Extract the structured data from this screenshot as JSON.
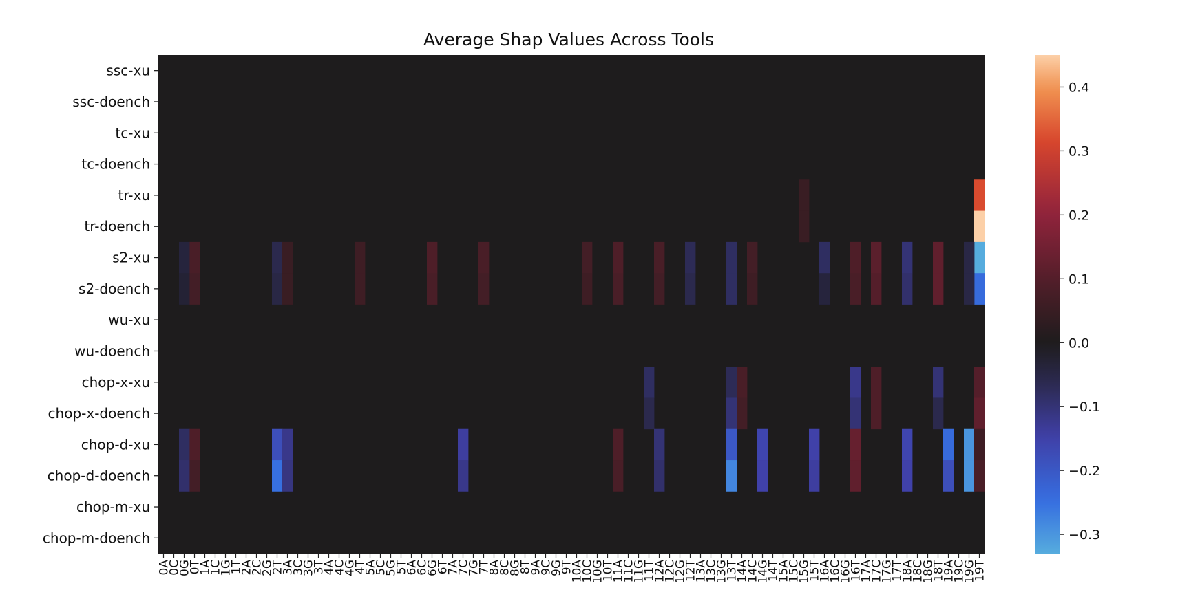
{
  "chart_data": {
    "type": "heatmap",
    "title": "Average Shap Values Across Tools",
    "rows": [
      "ssc-xu",
      "ssc-doench",
      "tc-xu",
      "tc-doench",
      "tr-xu",
      "tr-doench",
      "s2-xu",
      "s2-doench",
      "wu-xu",
      "wu-doench",
      "chop-x-xu",
      "chop-x-doench",
      "chop-d-xu",
      "chop-d-doench",
      "chop-m-xu",
      "chop-m-doench"
    ],
    "columns": [
      "0A",
      "0C",
      "0G",
      "0T",
      "1A",
      "1C",
      "1G",
      "1T",
      "2A",
      "2C",
      "2G",
      "2T",
      "3A",
      "3C",
      "3G",
      "3T",
      "4A",
      "4C",
      "4G",
      "4T",
      "5A",
      "5C",
      "5G",
      "5T",
      "6A",
      "6C",
      "6G",
      "6T",
      "7A",
      "7C",
      "7G",
      "7T",
      "8A",
      "8C",
      "8G",
      "8T",
      "9A",
      "9C",
      "9G",
      "9T",
      "10A",
      "10C",
      "10G",
      "10T",
      "11A",
      "11C",
      "11G",
      "11T",
      "12A",
      "12C",
      "12G",
      "12T",
      "13A",
      "13C",
      "13G",
      "13T",
      "14A",
      "14C",
      "14G",
      "14T",
      "15A",
      "15C",
      "15G",
      "15T",
      "16A",
      "16C",
      "16G",
      "16T",
      "17A",
      "17C",
      "17G",
      "17T",
      "18A",
      "18C",
      "18G",
      "18T",
      "19A",
      "19C",
      "19G",
      "19T"
    ],
    "cells": [
      {
        "row": "tr-xu",
        "col": "19T",
        "value": 0.32
      },
      {
        "row": "tr-doench",
        "col": "19T",
        "value": 0.45
      },
      {
        "row": "tr-xu",
        "col": "15G",
        "value": 0.05
      },
      {
        "row": "tr-doench",
        "col": "15G",
        "value": 0.05
      },
      {
        "row": "s2-xu",
        "col": "19T",
        "value": -0.33
      },
      {
        "row": "s2-doench",
        "col": "19T",
        "value": -0.24
      },
      {
        "row": "s2-xu",
        "col": "0T",
        "value": 0.08
      },
      {
        "row": "s2-doench",
        "col": "0T",
        "value": 0.07
      },
      {
        "row": "s2-xu",
        "col": "0G",
        "value": -0.04
      },
      {
        "row": "s2-doench",
        "col": "0G",
        "value": -0.03
      },
      {
        "row": "s2-xu",
        "col": "2T",
        "value": -0.06
      },
      {
        "row": "s2-doench",
        "col": "2T",
        "value": -0.05
      },
      {
        "row": "s2-xu",
        "col": "3A",
        "value": 0.05
      },
      {
        "row": "s2-doench",
        "col": "3A",
        "value": 0.05
      },
      {
        "row": "s2-xu",
        "col": "4T",
        "value": 0.06
      },
      {
        "row": "s2-doench",
        "col": "4T",
        "value": 0.06
      },
      {
        "row": "s2-xu",
        "col": "6G",
        "value": 0.09
      },
      {
        "row": "s2-doench",
        "col": "6G",
        "value": 0.08
      },
      {
        "row": "s2-xu",
        "col": "7T",
        "value": 0.08
      },
      {
        "row": "s2-doench",
        "col": "7T",
        "value": 0.07
      },
      {
        "row": "s2-xu",
        "col": "10C",
        "value": 0.07
      },
      {
        "row": "s2-doench",
        "col": "10C",
        "value": 0.06
      },
      {
        "row": "s2-xu",
        "col": "11A",
        "value": 0.09
      },
      {
        "row": "s2-doench",
        "col": "11A",
        "value": 0.08
      },
      {
        "row": "s2-xu",
        "col": "12A",
        "value": 0.08
      },
      {
        "row": "s2-doench",
        "col": "12A",
        "value": 0.07
      },
      {
        "row": "s2-xu",
        "col": "12T",
        "value": -0.07
      },
      {
        "row": "s2-doench",
        "col": "12T",
        "value": -0.06
      },
      {
        "row": "s2-xu",
        "col": "13T",
        "value": -0.08
      },
      {
        "row": "s2-doench",
        "col": "13T",
        "value": -0.08
      },
      {
        "row": "s2-xu",
        "col": "14C",
        "value": 0.07
      },
      {
        "row": "s2-doench",
        "col": "14C",
        "value": 0.06
      },
      {
        "row": "s2-xu",
        "col": "16A",
        "value": -0.08
      },
      {
        "row": "s2-doench",
        "col": "16A",
        "value": -0.04
      },
      {
        "row": "s2-xu",
        "col": "16T",
        "value": 0.09
      },
      {
        "row": "s2-doench",
        "col": "16T",
        "value": 0.08
      },
      {
        "row": "s2-xu",
        "col": "17C",
        "value": 0.11
      },
      {
        "row": "s2-doench",
        "col": "17C",
        "value": 0.1
      },
      {
        "row": "s2-xu",
        "col": "18A",
        "value": -0.1
      },
      {
        "row": "s2-doench",
        "col": "18A",
        "value": -0.09
      },
      {
        "row": "s2-xu",
        "col": "18T",
        "value": 0.12
      },
      {
        "row": "s2-doench",
        "col": "18T",
        "value": 0.12
      },
      {
        "row": "s2-xu",
        "col": "19G",
        "value": -0.05
      },
      {
        "row": "s2-doench",
        "col": "19G",
        "value": -0.05
      },
      {
        "row": "chop-x-xu",
        "col": "11T",
        "value": -0.08
      },
      {
        "row": "chop-x-doench",
        "col": "11T",
        "value": -0.06
      },
      {
        "row": "chop-x-xu",
        "col": "13T",
        "value": -0.07
      },
      {
        "row": "chop-x-doench",
        "col": "13T",
        "value": -0.1
      },
      {
        "row": "chop-x-xu",
        "col": "14A",
        "value": 0.08
      },
      {
        "row": "chop-x-doench",
        "col": "14A",
        "value": 0.07
      },
      {
        "row": "chop-x-xu",
        "col": "16T",
        "value": -0.12
      },
      {
        "row": "chop-x-doench",
        "col": "16T",
        "value": -0.1
      },
      {
        "row": "chop-x-xu",
        "col": "17C",
        "value": 0.09
      },
      {
        "row": "chop-x-doench",
        "col": "17C",
        "value": 0.09
      },
      {
        "row": "chop-x-xu",
        "col": "18T",
        "value": -0.1
      },
      {
        "row": "chop-x-doench",
        "col": "18T",
        "value": -0.06
      },
      {
        "row": "chop-x-xu",
        "col": "19T",
        "value": 0.1
      },
      {
        "row": "chop-x-doench",
        "col": "19T",
        "value": 0.12
      },
      {
        "row": "chop-d-xu",
        "col": "2T",
        "value": -0.18
      },
      {
        "row": "chop-d-doench",
        "col": "2T",
        "value": -0.25
      },
      {
        "row": "chop-d-xu",
        "col": "0T",
        "value": 0.09
      },
      {
        "row": "chop-d-doench",
        "col": "0T",
        "value": 0.07
      },
      {
        "row": "chop-d-xu",
        "col": "0G",
        "value": -0.08
      },
      {
        "row": "chop-d-doench",
        "col": "0G",
        "value": -0.09
      },
      {
        "row": "chop-d-xu",
        "col": "3A",
        "value": -0.12
      },
      {
        "row": "chop-d-doench",
        "col": "3A",
        "value": -0.11
      },
      {
        "row": "chop-d-xu",
        "col": "7C",
        "value": -0.14
      },
      {
        "row": "chop-d-doench",
        "col": "7C",
        "value": -0.12
      },
      {
        "row": "chop-d-xu",
        "col": "11A",
        "value": 0.09
      },
      {
        "row": "chop-d-doench",
        "col": "11A",
        "value": 0.08
      },
      {
        "row": "chop-d-xu",
        "col": "12A",
        "value": -0.1
      },
      {
        "row": "chop-d-doench",
        "col": "12A",
        "value": -0.09
      },
      {
        "row": "chop-d-xu",
        "col": "13T",
        "value": -0.2
      },
      {
        "row": "chop-d-doench",
        "col": "13T",
        "value": -0.28
      },
      {
        "row": "chop-d-xu",
        "col": "14G",
        "value": -0.16
      },
      {
        "row": "chop-d-doench",
        "col": "14G",
        "value": -0.15
      },
      {
        "row": "chop-d-xu",
        "col": "15T",
        "value": -0.15
      },
      {
        "row": "chop-d-doench",
        "col": "15T",
        "value": -0.14
      },
      {
        "row": "chop-d-xu",
        "col": "16T",
        "value": 0.13
      },
      {
        "row": "chop-d-doench",
        "col": "16T",
        "value": 0.12
      },
      {
        "row": "chop-d-xu",
        "col": "18A",
        "value": -0.16
      },
      {
        "row": "chop-d-doench",
        "col": "18A",
        "value": -0.15
      },
      {
        "row": "chop-d-xu",
        "col": "19A",
        "value": -0.24
      },
      {
        "row": "chop-d-doench",
        "col": "19A",
        "value": -0.18
      },
      {
        "row": "chop-d-xu",
        "col": "19G",
        "value": -0.3
      },
      {
        "row": "chop-d-doench",
        "col": "19G",
        "value": -0.3
      },
      {
        "row": "chop-d-xu",
        "col": "19T",
        "value": 0.06
      },
      {
        "row": "chop-d-doench",
        "col": "19T",
        "value": 0.08
      }
    ],
    "vmin": -0.33,
    "vmax": 0.45,
    "center": 0.0,
    "colorbar_ticks": [
      0.4,
      0.3,
      0.2,
      0.1,
      0.0,
      -0.1,
      -0.2,
      -0.3
    ],
    "colormap": "icefire",
    "background_color": "#1e1c1d"
  }
}
